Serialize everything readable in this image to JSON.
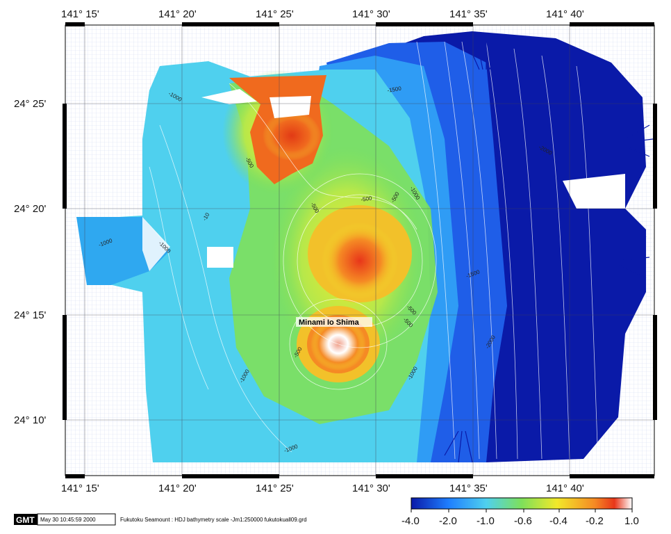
{
  "map": {
    "lon_ticks": [
      "141° 15'",
      "141° 20'",
      "141° 25'",
      "141° 30'",
      "141° 35'",
      "141° 40'"
    ],
    "lat_ticks": [
      "24° 25'",
      "24° 20'",
      "24° 15'",
      "24° 10'"
    ],
    "island_label": "Minami Io Shima",
    "contour_labels": [
      "-1000",
      "-500",
      "-1500",
      "-2000",
      "-500",
      "-500",
      "-500",
      "-1000",
      "-10",
      "-1000",
      "-1000",
      "-500",
      "-1500",
      "-500",
      "-2000",
      "-500",
      "-1000",
      "-1000",
      "-1000"
    ]
  },
  "colorbar": {
    "labels": [
      "-4.0",
      "-2.0",
      "-1.0",
      "-0.6",
      "-0.4",
      "-0.2",
      "1.0"
    ],
    "colors": [
      "#0a1aa8",
      "#1f7fff",
      "#4fd0ee",
      "#7ee05a",
      "#f2e82a",
      "#f58a24",
      "#e8361a",
      "#ffffff"
    ]
  },
  "footer": {
    "gmt_badge": "GMT",
    "timestamp": "May 30 10:45:59 2000",
    "command": "Fukutoku Seamount : HDJ bathymetry scale -Jm1:250000 fukutokuall09.grd"
  }
}
